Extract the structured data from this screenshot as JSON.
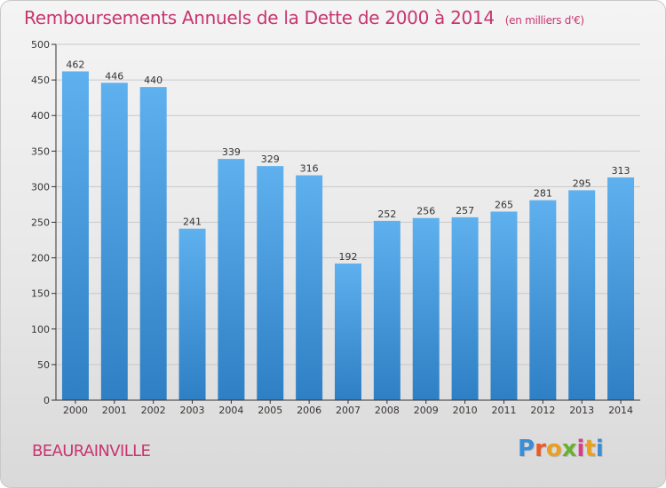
{
  "title": "Remboursements Annuels de la Dette de 2000 à 2014",
  "unit": "(en milliers d'€)",
  "commune": "BEAURAINVILLE",
  "logo": {
    "text": "Proxiti",
    "colors": [
      "#3a8dd6",
      "#e85a2a",
      "#e8a020",
      "#6ab030",
      "#d83c8a",
      "#e8a020",
      "#3a8dd6"
    ]
  },
  "colors": {
    "title": "#c8356f",
    "bar_top": "#5fb0ee",
    "bar_bottom": "#2e7fc4",
    "axis": "#333333",
    "grid": "#c9c9c9"
  },
  "chart_data": {
    "type": "bar",
    "title": "Remboursements Annuels de la Dette de 2000 à 2014",
    "xlabel": "",
    "ylabel": "",
    "ylim": [
      0,
      500
    ],
    "yticks": [
      0,
      50,
      100,
      150,
      200,
      250,
      300,
      350,
      400,
      450,
      500
    ],
    "categories": [
      "2000",
      "2001",
      "2002",
      "2003",
      "2004",
      "2005",
      "2006",
      "2007",
      "2008",
      "2009",
      "2010",
      "2011",
      "2012",
      "2013",
      "2014"
    ],
    "values": [
      462,
      446,
      440,
      241,
      339,
      329,
      316,
      192,
      252,
      256,
      257,
      265,
      281,
      295,
      313
    ],
    "grid": true
  }
}
